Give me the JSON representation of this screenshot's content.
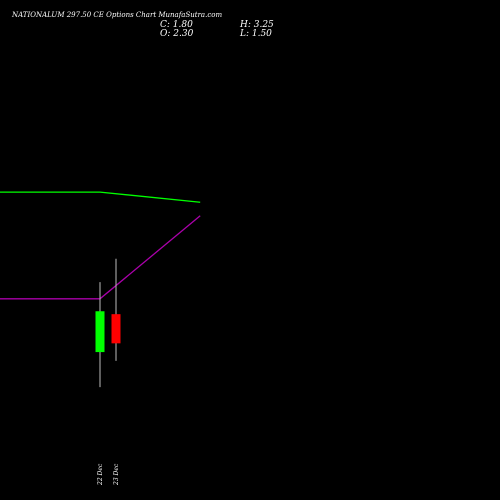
{
  "header": {
    "title": "NATIONALUM 297.50 CE Options Chart MunafaSutra.com",
    "close": "C: 1.80",
    "high": "H: 3.25",
    "open": "O: 2.30",
    "low": "L: 1.50"
  },
  "colors": {
    "background": "#000000",
    "up": "#00ff00",
    "down": "#ff0000",
    "line_green": "#00ff00",
    "line_magenta": "#aa00aa",
    "wick": "#bbbbbb",
    "text": "#ffffff"
  },
  "chart_data": {
    "type": "candlestick",
    "y_range": [
      1.0,
      3.4
    ],
    "candles": [
      {
        "label": "22 Dec",
        "open": 1.65,
        "high": 2.85,
        "low": 1.05,
        "close": 2.35,
        "color": "up"
      },
      {
        "label": "23 Dec",
        "open": 2.3,
        "high": 3.25,
        "low": 1.5,
        "close": 1.8,
        "color": "down"
      }
    ],
    "overlay_lines": [
      {
        "color": "line_green",
        "points": [
          {
            "x": -6.0,
            "y": 8.5
          },
          {
            "x": 0.0,
            "y": 8.5
          },
          {
            "x": 6.0,
            "y": 8.2
          }
        ]
      },
      {
        "color": "line_magenta",
        "points": [
          {
            "x": -6.0,
            "y": 5.35
          },
          {
            "x": 0.0,
            "y": 5.35
          },
          {
            "x": 6.0,
            "y": 7.8
          }
        ]
      }
    ],
    "lines_y_range": [
      0.0,
      12.4
    ],
    "x_range": [
      -6.0,
      24.0
    ]
  }
}
